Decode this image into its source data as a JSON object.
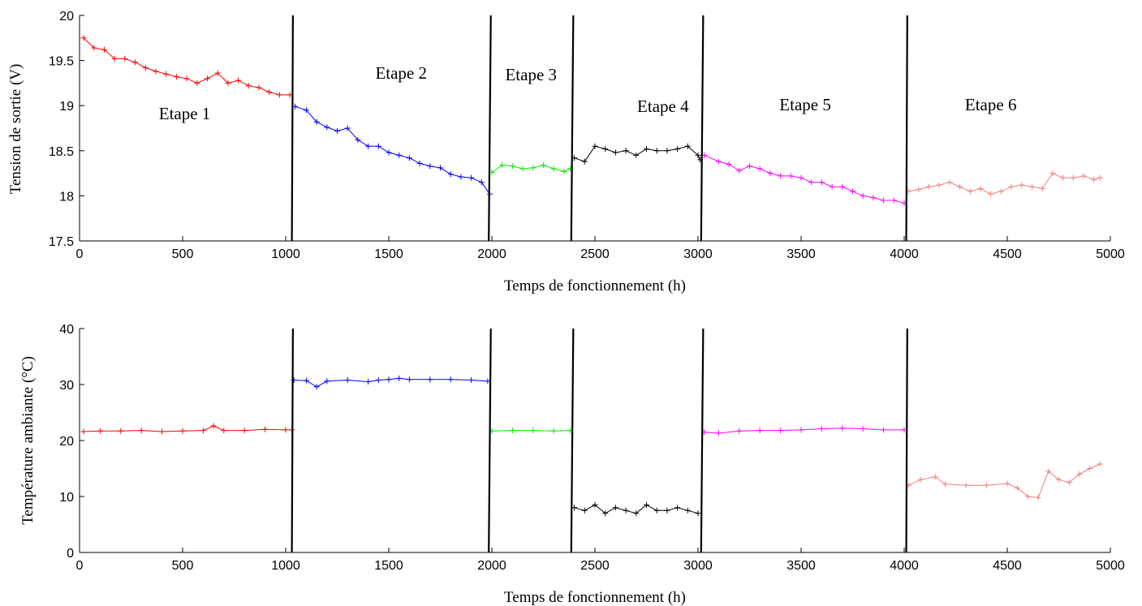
{
  "chart_data": [
    {
      "type": "line",
      "xlabel": "Temps de fonctionnement (h)",
      "ylabel": "Tension de sortie (V)",
      "xlim": [
        0,
        5000
      ],
      "ylim": [
        17.5,
        20
      ],
      "x_ticks": [
        0,
        500,
        1000,
        1500,
        2000,
        2500,
        3000,
        3500,
        4000,
        4500,
        5000
      ],
      "y_ticks": [
        17.5,
        18,
        18.5,
        19,
        19.5,
        20
      ],
      "y_tick_labels": [
        "17.5",
        "18",
        "18.5",
        "19",
        "19.5",
        "20"
      ],
      "grid": false,
      "boundaries": [
        {
          "x_top": 1035,
          "x_bottom": 1030
        },
        {
          "x_top": 1995,
          "x_bottom": 1985
        },
        {
          "x_top": 2395,
          "x_bottom": 2385
        },
        {
          "x_top": 3025,
          "x_bottom": 3015
        },
        {
          "x_top": 4015,
          "x_bottom": 4010
        }
      ],
      "annotations": [
        {
          "text": "Etape 1",
          "x": 510,
          "y": 18.85
        },
        {
          "text": "Etape 2",
          "x": 1560,
          "y": 19.3
        },
        {
          "text": "Etape 3",
          "x": 2190,
          "y": 19.28
        },
        {
          "text": "Etape 4",
          "x": 2830,
          "y": 18.93
        },
        {
          "text": "Etape 5",
          "x": 3520,
          "y": 18.95
        },
        {
          "text": "Etape 6",
          "x": 4420,
          "y": 18.95
        }
      ],
      "series": [
        {
          "color": "#ff0000",
          "x": [
            20,
            70,
            120,
            170,
            220,
            270,
            320,
            370,
            420,
            470,
            520,
            570,
            620,
            670,
            720,
            770,
            820,
            870,
            920,
            970,
            1020
          ],
          "y": [
            19.75,
            19.64,
            19.62,
            19.52,
            19.52,
            19.48,
            19.42,
            19.38,
            19.35,
            19.32,
            19.3,
            19.25,
            19.3,
            19.36,
            19.25,
            19.28,
            19.22,
            19.2,
            19.15,
            19.12,
            19.12
          ]
        },
        {
          "color": "#0000ff",
          "x": [
            1045,
            1100,
            1150,
            1200,
            1250,
            1300,
            1350,
            1400,
            1450,
            1500,
            1550,
            1600,
            1650,
            1700,
            1750,
            1800,
            1850,
            1900,
            1950,
            1990
          ],
          "y": [
            18.99,
            18.95,
            18.82,
            18.76,
            18.72,
            18.75,
            18.62,
            18.55,
            18.55,
            18.48,
            18.45,
            18.42,
            18.36,
            18.33,
            18.31,
            18.24,
            18.21,
            18.2,
            18.15,
            18.02
          ]
        },
        {
          "color": "#00ee00",
          "x": [
            2000,
            2050,
            2100,
            2150,
            2200,
            2250,
            2300,
            2350,
            2380
          ],
          "y": [
            18.26,
            18.34,
            18.33,
            18.3,
            18.31,
            18.34,
            18.3,
            18.27,
            18.3
          ]
        },
        {
          "color": "#000000",
          "x": [
            2400,
            2450,
            2500,
            2550,
            2600,
            2650,
            2700,
            2750,
            2800,
            2850,
            2900,
            2950,
            3000,
            3010
          ],
          "y": [
            18.42,
            18.38,
            18.55,
            18.52,
            18.48,
            18.5,
            18.45,
            18.52,
            18.5,
            18.5,
            18.52,
            18.55,
            18.45,
            18.4
          ]
        },
        {
          "color": "#ff00ff",
          "x": [
            3030,
            3100,
            3150,
            3200,
            3250,
            3300,
            3350,
            3400,
            3450,
            3500,
            3550,
            3600,
            3650,
            3700,
            3750,
            3800,
            3850,
            3900,
            3950,
            4000
          ],
          "y": [
            18.45,
            18.38,
            18.35,
            18.28,
            18.33,
            18.3,
            18.25,
            18.22,
            18.22,
            18.2,
            18.15,
            18.15,
            18.1,
            18.1,
            18.05,
            18.0,
            17.98,
            17.95,
            17.95,
            17.92
          ]
        },
        {
          "color": "#f08080",
          "x": [
            4020,
            4070,
            4120,
            4170,
            4220,
            4270,
            4320,
            4370,
            4420,
            4470,
            4520,
            4570,
            4620,
            4670,
            4720,
            4770,
            4820,
            4870,
            4920,
            4950
          ],
          "y": [
            18.05,
            18.07,
            18.1,
            18.12,
            18.15,
            18.1,
            18.05,
            18.08,
            18.02,
            18.05,
            18.1,
            18.12,
            18.1,
            18.08,
            18.25,
            18.2,
            18.2,
            18.22,
            18.18,
            18.2
          ]
        }
      ]
    },
    {
      "type": "line",
      "xlabel": "Temps de fonctionnement (h)",
      "ylabel": "Température ambiante (°C)",
      "xlim": [
        0,
        5000
      ],
      "ylim": [
        0,
        40
      ],
      "x_ticks": [
        0,
        500,
        1000,
        1500,
        2000,
        2500,
        3000,
        3500,
        4000,
        4500,
        5000
      ],
      "y_ticks": [
        0,
        10,
        20,
        30,
        40
      ],
      "y_tick_labels": [
        "0",
        "10",
        "20",
        "30",
        "40"
      ],
      "grid": false,
      "boundaries": [
        {
          "x_top": 1035,
          "x_bottom": 1030
        },
        {
          "x_top": 1995,
          "x_bottom": 1985
        },
        {
          "x_top": 2395,
          "x_bottom": 2385
        },
        {
          "x_top": 3025,
          "x_bottom": 3015
        },
        {
          "x_top": 4015,
          "x_bottom": 4010
        }
      ],
      "annotations": [],
      "series": [
        {
          "color": "#ff0000",
          "x": [
            20,
            100,
            200,
            300,
            400,
            500,
            600,
            650,
            700,
            800,
            900,
            1000,
            1030
          ],
          "y": [
            21.6,
            21.7,
            21.7,
            21.8,
            21.6,
            21.7,
            21.8,
            22.6,
            21.8,
            21.8,
            22.0,
            21.9,
            21.9
          ]
        },
        {
          "color": "#0000ff",
          "x": [
            1040,
            1100,
            1150,
            1200,
            1300,
            1400,
            1450,
            1500,
            1550,
            1600,
            1700,
            1800,
            1900,
            1980
          ],
          "y": [
            30.8,
            30.7,
            29.6,
            30.6,
            30.8,
            30.5,
            30.8,
            30.9,
            31.1,
            30.9,
            30.9,
            30.9,
            30.8,
            30.6
          ]
        },
        {
          "color": "#00ee00",
          "x": [
            2000,
            2100,
            2200,
            2300,
            2380
          ],
          "y": [
            21.7,
            21.8,
            21.8,
            21.7,
            21.8
          ]
        },
        {
          "color": "#000000",
          "x": [
            2400,
            2450,
            2500,
            2550,
            2600,
            2650,
            2700,
            2750,
            2800,
            2850,
            2900,
            2950,
            3000
          ],
          "y": [
            8.0,
            7.5,
            8.5,
            7.0,
            8.0,
            7.5,
            7.0,
            8.5,
            7.5,
            7.5,
            8.0,
            7.5,
            7.0
          ]
        },
        {
          "color": "#ff00ff",
          "x": [
            3030,
            3100,
            3200,
            3300,
            3400,
            3500,
            3600,
            3700,
            3800,
            3900,
            4000
          ],
          "y": [
            21.5,
            21.3,
            21.7,
            21.8,
            21.8,
            21.9,
            22.1,
            22.2,
            22.1,
            21.9,
            21.9
          ]
        },
        {
          "color": "#f08080",
          "x": [
            4020,
            4080,
            4150,
            4200,
            4300,
            4400,
            4500,
            4550,
            4600,
            4650,
            4700,
            4750,
            4800,
            4850,
            4900,
            4950
          ],
          "y": [
            12.0,
            13.0,
            13.5,
            12.2,
            12.0,
            12.0,
            12.3,
            11.5,
            10.0,
            9.8,
            14.5,
            13.0,
            12.5,
            14.0,
            15.0,
            15.8
          ]
        }
      ]
    }
  ]
}
